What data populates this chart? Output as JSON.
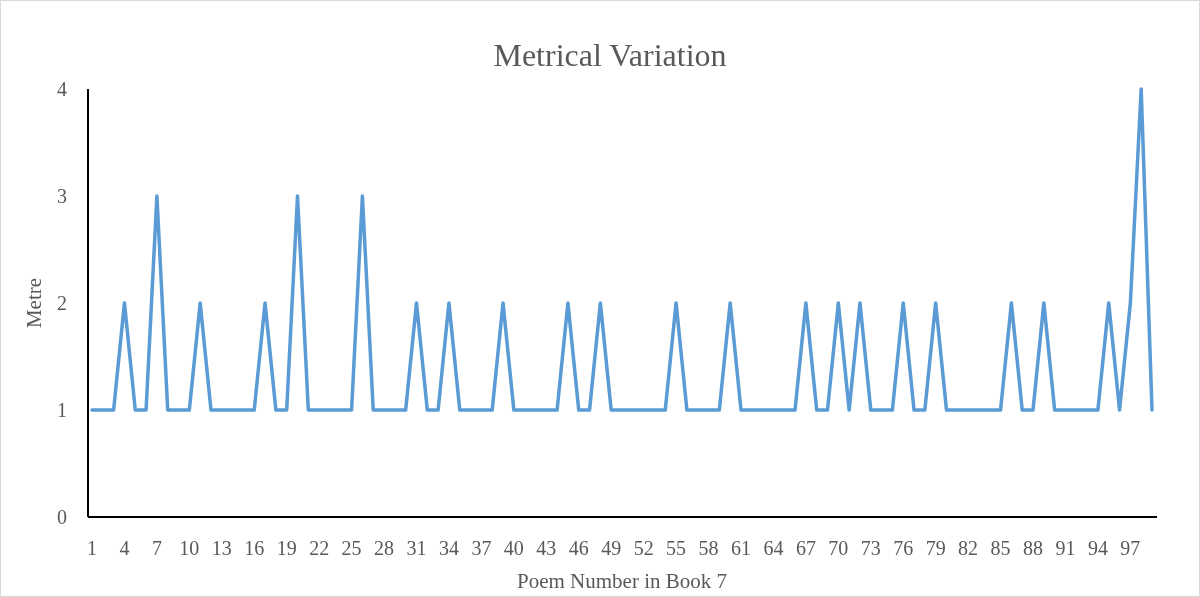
{
  "chart_data": {
    "type": "line",
    "title": "Metrical Variation",
    "xlabel": "Poem Number in Book 7",
    "ylabel": "Metre",
    "categories": [
      "1",
      null,
      null,
      "4",
      null,
      null,
      "7",
      null,
      null,
      "10",
      null,
      null,
      "13",
      null,
      null,
      "16",
      null,
      null,
      "19",
      null,
      null,
      "22",
      null,
      null,
      "25",
      null,
      null,
      "28",
      null,
      null,
      "31",
      null,
      null,
      "34",
      null,
      null,
      "37",
      null,
      null,
      "40",
      null,
      null,
      "43",
      null,
      null,
      "46",
      null,
      null,
      "49",
      null,
      null,
      "52",
      null,
      null,
      "55",
      null,
      null,
      "58",
      null,
      null,
      "61",
      null,
      null,
      "64",
      null,
      null,
      "67",
      null,
      null,
      "70",
      null,
      null,
      "73",
      null,
      null,
      "76",
      null,
      null,
      "79",
      null,
      null,
      "82",
      null,
      null,
      "85",
      null,
      null,
      "88",
      null,
      null,
      "91",
      null,
      null,
      "94",
      null,
      null,
      "97",
      null,
      null
    ],
    "series": [
      {
        "color": "#5b9bd5",
        "values": [
          1,
          1,
          1,
          2,
          1,
          1,
          3,
          1,
          1,
          1,
          2,
          1,
          1,
          1,
          1,
          1,
          2,
          1,
          1,
          3,
          1,
          1,
          1,
          1,
          1,
          3,
          1,
          1,
          1,
          1,
          2,
          1,
          1,
          2,
          1,
          1,
          1,
          1,
          2,
          1,
          1,
          1,
          1,
          1,
          2,
          1,
          1,
          2,
          1,
          1,
          1,
          1,
          1,
          1,
          2,
          1,
          1,
          1,
          1,
          2,
          1,
          1,
          1,
          1,
          1,
          1,
          2,
          1,
          1,
          2,
          1,
          2,
          1,
          1,
          1,
          2,
          1,
          1,
          2,
          1,
          1,
          1,
          1,
          1,
          1,
          2,
          1,
          1,
          2,
          1,
          1,
          1,
          1,
          1,
          2,
          1,
          2,
          4,
          1
        ]
      }
    ],
    "ylim": [
      0,
      4
    ],
    "yticks": [
      0,
      1,
      2,
      3,
      4
    ],
    "grid": false,
    "marker": "none",
    "line_style": "solid"
  }
}
